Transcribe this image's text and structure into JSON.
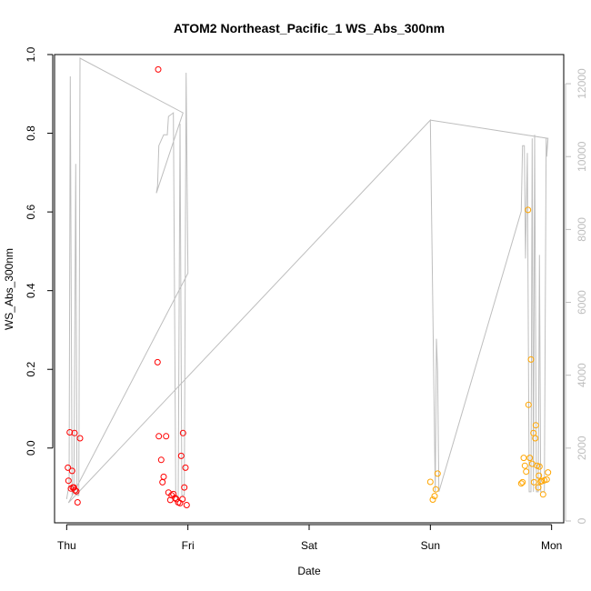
{
  "chart_data": {
    "type": "scatter",
    "title": "ATOM2 Northeast_Pacific_1 WS_Abs_300nm",
    "xlabel": "Date",
    "ylabel": "WS_Abs_300nm",
    "x_ticks": [
      {
        "day": 0,
        "label": "Thu"
      },
      {
        "day": 1,
        "label": "Fri"
      },
      {
        "day": 2,
        "label": "Sat"
      },
      {
        "day": 3,
        "label": "Sun"
      },
      {
        "day": 4,
        "label": "Mon"
      }
    ],
    "xlim": [
      -0.1,
      4.1
    ],
    "ylim": [
      -0.19,
      1.0
    ],
    "y_ticks": [
      0.0,
      0.2,
      0.4,
      0.6,
      0.8,
      1.0
    ],
    "y2lim": [
      -50,
      12800
    ],
    "y2_ticks": [
      0,
      2000,
      4000,
      6000,
      8000,
      10000,
      12000
    ],
    "grid": false,
    "colors": {
      "series_red": "#ff0000",
      "series_orange": "#ffa500",
      "altitude_line": "#bebebe",
      "axis": "#000000",
      "axis2": "#bebebe"
    },
    "series": [
      {
        "color": "red",
        "points": [
          [
            0.01,
            -0.05
          ],
          [
            0.015,
            -0.083
          ],
          [
            0.025,
            0.04
          ],
          [
            0.035,
            -0.103
          ],
          [
            0.045,
            -0.058
          ],
          [
            0.05,
            -0.1
          ],
          [
            0.06,
            -0.1
          ],
          [
            0.065,
            0.038
          ],
          [
            0.07,
            -0.107
          ],
          [
            0.08,
            -0.11
          ],
          [
            0.09,
            -0.138
          ],
          [
            0.11,
            0.025
          ],
          [
            0.75,
            0.218
          ],
          [
            0.755,
            0.962
          ],
          [
            0.76,
            0.03
          ],
          [
            0.78,
            -0.03
          ],
          [
            0.79,
            -0.087
          ],
          [
            0.8,
            -0.073
          ],
          [
            0.82,
            0.03
          ],
          [
            0.84,
            -0.113
          ],
          [
            0.855,
            -0.132
          ],
          [
            0.865,
            -0.12
          ],
          [
            0.88,
            -0.117
          ],
          [
            0.895,
            -0.127
          ],
          [
            0.905,
            -0.13
          ],
          [
            0.92,
            -0.138
          ],
          [
            0.935,
            -0.14
          ],
          [
            0.945,
            -0.02
          ],
          [
            0.955,
            -0.13
          ],
          [
            0.96,
            0.038
          ],
          [
            0.97,
            -0.1
          ],
          [
            0.98,
            -0.05
          ],
          [
            0.99,
            -0.145
          ]
        ]
      },
      {
        "color": "orange",
        "points": [
          [
            3.0,
            -0.086
          ],
          [
            3.02,
            -0.131
          ],
          [
            3.035,
            -0.122
          ],
          [
            3.045,
            -0.105
          ],
          [
            3.06,
            -0.065
          ],
          [
            3.75,
            -0.09
          ],
          [
            3.76,
            -0.087
          ],
          [
            3.77,
            -0.025
          ],
          [
            3.78,
            -0.045
          ],
          [
            3.79,
            -0.06
          ],
          [
            3.805,
            0.605
          ],
          [
            3.81,
            0.11
          ],
          [
            3.82,
            -0.025
          ],
          [
            3.83,
            0.225
          ],
          [
            3.84,
            -0.04
          ],
          [
            3.85,
            0.038
          ],
          [
            3.855,
            -0.087
          ],
          [
            3.865,
            0.025
          ],
          [
            3.87,
            0.058
          ],
          [
            3.88,
            -0.045
          ],
          [
            3.89,
            -0.1
          ],
          [
            3.895,
            -0.07
          ],
          [
            3.9,
            -0.047
          ],
          [
            3.91,
            -0.085
          ],
          [
            3.92,
            -0.084
          ],
          [
            3.93,
            -0.118
          ],
          [
            3.94,
            -0.082
          ],
          [
            3.96,
            -0.08
          ],
          [
            3.97,
            -0.062
          ]
        ]
      }
    ],
    "altitude_line": [
      [
        0.0,
        600
      ],
      [
        0.02,
        1000
      ],
      [
        0.03,
        12200
      ],
      [
        0.045,
        700
      ],
      [
        0.06,
        1000
      ],
      [
        0.075,
        9800
      ],
      [
        0.085,
        700
      ],
      [
        0.1,
        700
      ],
      [
        0.11,
        12700
      ],
      [
        0.96,
        11200
      ],
      [
        0.74,
        9000
      ],
      [
        0.75,
        9200
      ],
      [
        0.76,
        10300
      ],
      [
        0.8,
        10600
      ],
      [
        0.83,
        10600
      ],
      [
        0.84,
        11100
      ],
      [
        0.88,
        11200
      ],
      [
        0.9,
        700
      ],
      [
        0.92,
        600
      ],
      [
        0.935,
        10900
      ],
      [
        0.95,
        700
      ],
      [
        0.97,
        700
      ],
      [
        0.985,
        12300
      ],
      [
        1.0,
        6800
      ],
      [
        0.015,
        500
      ],
      [
        3.0,
        11000
      ],
      [
        3.04,
        800
      ],
      [
        3.05,
        5000
      ],
      [
        3.06,
        4100
      ],
      [
        3.07,
        800
      ],
      [
        3.75,
        8500
      ],
      [
        3.76,
        10300
      ],
      [
        3.775,
        10300
      ],
      [
        3.785,
        7200
      ],
      [
        3.8,
        10100
      ],
      [
        3.815,
        800
      ],
      [
        3.83,
        800
      ],
      [
        3.84,
        10500
      ],
      [
        3.85,
        800
      ],
      [
        3.86,
        10600
      ],
      [
        3.875,
        800
      ],
      [
        3.89,
        800
      ],
      [
        3.9,
        7300
      ],
      [
        3.91,
        800
      ],
      [
        3.925,
        800
      ],
      [
        3.94,
        800
      ],
      [
        3.955,
        10500
      ],
      [
        3.96,
        10000
      ],
      [
        3.97,
        10500
      ],
      [
        3.0,
        11000
      ]
    ]
  }
}
